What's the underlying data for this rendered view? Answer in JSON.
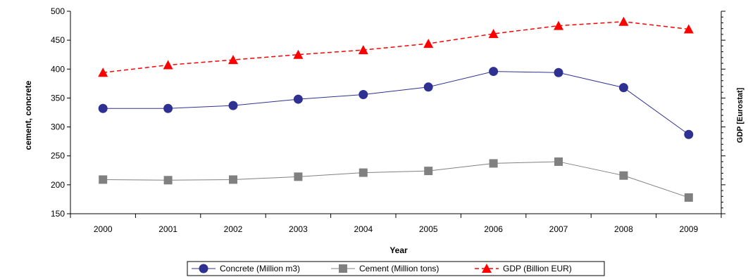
{
  "chart_data": {
    "type": "line",
    "categories": [
      "2000",
      "2001",
      "2002",
      "2003",
      "2004",
      "2005",
      "2006",
      "2007",
      "2008",
      "2009"
    ],
    "xlabel": "Year",
    "ylabel": "cement, concrete",
    "y2label": "GDP [Eurostat]",
    "ylim": [
      150,
      500
    ],
    "yticks": [
      150,
      200,
      250,
      300,
      350,
      400,
      450,
      500
    ],
    "grid": false,
    "legend_position": "bottom",
    "series": [
      {
        "name": "Concrete (Million m3)",
        "values": [
          332,
          332,
          337,
          348,
          356,
          369,
          396,
          394,
          368,
          287
        ],
        "color": "#2e3192",
        "marker": "circle",
        "line_style": "solid"
      },
      {
        "name": "Cement (Million tons)",
        "values": [
          209,
          208,
          209,
          214,
          221,
          224,
          237,
          240,
          216,
          178
        ],
        "color": "#808080",
        "marker": "square",
        "line_style": "solid"
      },
      {
        "name": "GDP (Billion EUR)",
        "values": [
          394,
          407,
          416,
          425,
          433,
          444,
          461,
          475,
          482,
          469
        ],
        "color": "#ff0000",
        "marker": "triangle",
        "line_style": "dashed"
      }
    ]
  }
}
